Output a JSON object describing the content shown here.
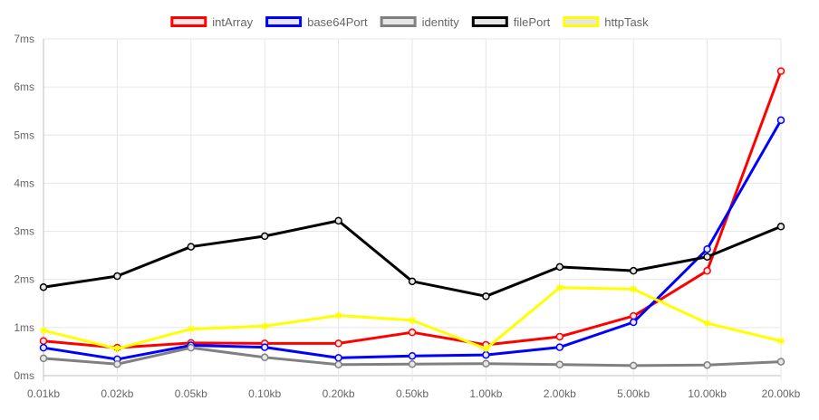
{
  "chart_data": {
    "type": "line",
    "categories": [
      "0.01kb",
      "0.02kb",
      "0.05kb",
      "0.10kb",
      "0.20kb",
      "0.50kb",
      "1.00kb",
      "2.00kb",
      "5.00kb",
      "10.00kb",
      "20.00kb"
    ],
    "y_ticks": [
      "0ms",
      "1ms",
      "2ms",
      "3ms",
      "4ms",
      "5ms",
      "6ms",
      "7ms"
    ],
    "ylim": [
      0,
      7
    ],
    "grid": true,
    "legend_position": "top",
    "series": [
      {
        "name": "intArray",
        "color": "#ff0000",
        "fill": "#ffe6e6",
        "point_style": "circle",
        "values": [
          0.72,
          0.58,
          0.68,
          0.67,
          0.67,
          0.9,
          0.64,
          0.81,
          1.24,
          2.18,
          6.33
        ]
      },
      {
        "name": "base64Port",
        "color": "#0000ff",
        "fill": "#e6e6ff",
        "point_style": "circle",
        "values": [
          0.58,
          0.34,
          0.63,
          0.59,
          0.37,
          0.41,
          0.43,
          0.59,
          1.11,
          2.63,
          5.31
        ]
      },
      {
        "name": "identity",
        "color": "#808080",
        "fill": "#e6e6e6",
        "point_style": "circle",
        "values": [
          0.36,
          0.24,
          0.58,
          0.38,
          0.23,
          0.24,
          0.25,
          0.23,
          0.21,
          0.22,
          0.29
        ]
      },
      {
        "name": "filePort",
        "color": "#000000",
        "fill": "#e6e6e6",
        "point_style": "circle",
        "values": [
          1.84,
          2.07,
          2.68,
          2.9,
          3.22,
          1.96,
          1.65,
          2.26,
          2.18,
          2.47,
          3.1
        ]
      },
      {
        "name": "httpTask",
        "color": "#ffff00",
        "fill": "#e6e6e6",
        "point_style": "star",
        "values": [
          0.94,
          0.56,
          0.97,
          1.03,
          1.25,
          1.15,
          0.56,
          1.83,
          1.8,
          1.09,
          0.72
        ]
      }
    ]
  }
}
